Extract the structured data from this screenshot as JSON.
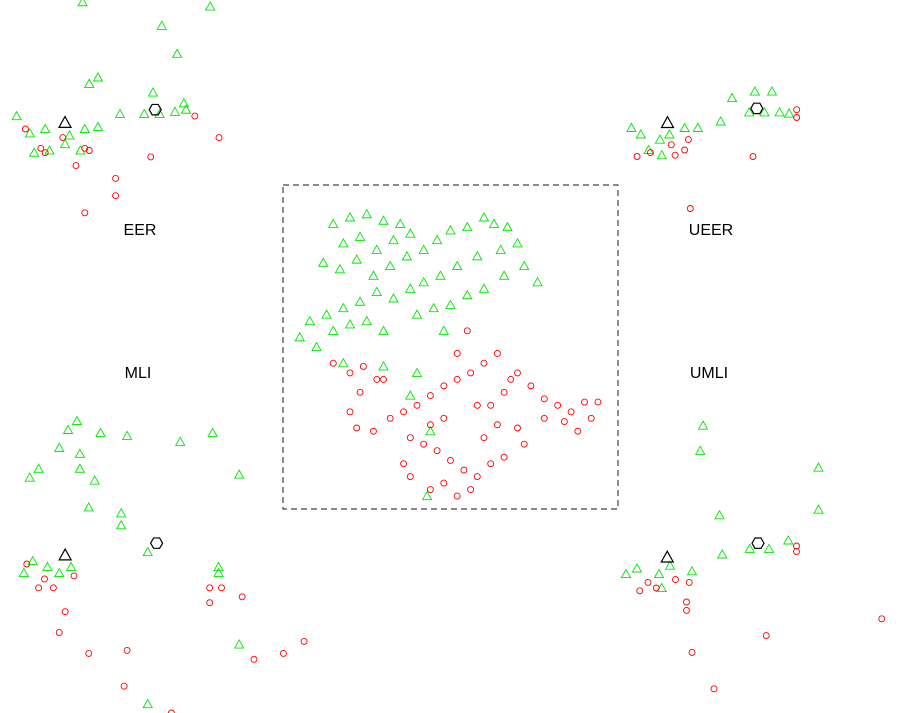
{
  "chart_data": [
    {
      "type": "scatter",
      "frame": "dashed",
      "xlim": [
        0,
        100
      ],
      "ylim": [
        0,
        100
      ],
      "series": [
        {
          "color": "#00e600",
          "marker": "triangle",
          "x": [
            15,
            20,
            25,
            30,
            35,
            18,
            23,
            28,
            33,
            38,
            12,
            17,
            22,
            27,
            32,
            37,
            42,
            46,
            50,
            55,
            60,
            63,
            67,
            70,
            65,
            58,
            52,
            47,
            42,
            38,
            33,
            28,
            23,
            18,
            13,
            8,
            5,
            10,
            15,
            20,
            25,
            30,
            40,
            45,
            50,
            55,
            60,
            66,
            72,
            76,
            48,
            18,
            40,
            30,
            44,
            43,
            38
          ],
          "y": [
            88,
            90,
            91,
            89,
            88,
            82,
            84,
            80,
            83,
            85,
            76,
            74,
            77,
            72,
            75,
            78,
            80,
            83,
            86,
            87,
            90,
            88,
            87,
            82,
            80,
            78,
            75,
            72,
            70,
            68,
            65,
            67,
            64,
            62,
            60,
            58,
            53,
            50,
            55,
            57,
            58,
            55,
            60,
            62,
            63,
            66,
            68,
            72,
            75,
            70,
            55,
            45,
            42,
            44,
            24,
            4,
            35
          ]
        },
        {
          "color": "#ff0000",
          "marker": "circle",
          "x": [
            15,
            20,
            24,
            28,
            23,
            20,
            22,
            27,
            32,
            36,
            40,
            44,
            48,
            52,
            56,
            38,
            42,
            46,
            50,
            54,
            58,
            48,
            44,
            52,
            56,
            38,
            36,
            60,
            64,
            62,
            66,
            68,
            70,
            74,
            78,
            82,
            86,
            90,
            94,
            92,
            88,
            84,
            78,
            72,
            66,
            70,
            60,
            64,
            55,
            52,
            62,
            30,
            58,
            48,
            44
          ],
          "y": [
            45,
            42,
            44,
            40,
            36,
            30,
            25,
            24,
            28,
            30,
            32,
            35,
            38,
            40,
            42,
            22,
            20,
            18,
            15,
            12,
            10,
            8,
            6,
            4,
            6,
            10,
            14,
            22,
            26,
            32,
            36,
            40,
            42,
            38,
            34,
            32,
            30,
            33,
            33,
            28,
            24,
            27,
            28,
            20,
            16,
            25,
            45,
            48,
            55,
            48,
            14,
            40,
            32,
            28,
            26
          ]
        }
      ]
    },
    {
      "type": "scatter",
      "title": "EER",
      "xlim": [
        0,
        100
      ],
      "ylim": [
        0,
        100
      ],
      "series": [
        {
          "color": "#00e600",
          "marker": "triangle",
          "x": [
            33,
            69,
            91,
            76,
            36,
            40,
            65,
            3,
            9,
            16,
            27,
            34,
            40,
            50,
            61,
            68,
            75,
            79,
            80,
            11,
            18,
            25,
            32
          ],
          "y": [
            99,
            88,
            97,
            75,
            61,
            64,
            57,
            46,
            38,
            40,
            37,
            40,
            41,
            47,
            47,
            47,
            48,
            52,
            49,
            29,
            30,
            33,
            30
          ]
        },
        {
          "color": "#ff0000",
          "marker": "circle",
          "x": [
            7,
            14,
            16,
            24,
            30,
            34,
            36,
            48,
            48,
            34,
            64,
            84,
            95
          ],
          "y": [
            40,
            31,
            29,
            36,
            23,
            31,
            30,
            17,
            9,
            1,
            27,
            46,
            36
          ]
        },
        {
          "color": "#000000",
          "marker": "triangle",
          "x": [
            25
          ],
          "y": [
            43
          ]
        },
        {
          "color": "#000000",
          "marker": "hexagon",
          "x": [
            66
          ],
          "y": [
            49
          ]
        }
      ]
    },
    {
      "type": "scatter",
      "title": "UEER",
      "xlim": [
        0,
        100
      ],
      "ylim": [
        0,
        100
      ],
      "series": [
        {
          "color": "#00e600",
          "marker": "triangle",
          "x": [
            6,
            11,
            21,
            26,
            34,
            41,
            53,
            59,
            71,
            80,
            76,
            84,
            89,
            15,
            22,
            68
          ],
          "y": [
            67,
            62,
            58,
            62,
            67,
            67,
            72,
            90,
            95,
            95,
            79,
            79,
            78,
            50,
            46,
            79
          ]
        },
        {
          "color": "#ff0000",
          "marker": "circle",
          "x": [
            9,
            16,
            29,
            34,
            36,
            37,
            70,
            93,
            93,
            27
          ],
          "y": [
            45,
            48,
            46,
            50,
            58,
            5,
            45,
            81,
            75,
            54
          ]
        },
        {
          "color": "#000000",
          "marker": "triangle",
          "x": [
            25
          ],
          "y": [
            71
          ]
        },
        {
          "color": "#000000",
          "marker": "hexagon",
          "x": [
            72
          ],
          "y": [
            82
          ]
        }
      ]
    },
    {
      "type": "scatter",
      "title": "MLI",
      "xlim": [
        0,
        100
      ],
      "ylim": [
        0,
        100
      ],
      "series": [
        {
          "color": "#00e600",
          "marker": "triangle",
          "x": [
            21,
            18,
            29,
            38,
            56,
            67,
            15,
            22,
            22,
            8,
            5,
            27,
            76,
            25,
            36,
            36,
            45,
            6,
            3,
            11,
            15,
            19,
            69,
            69,
            76,
            45
          ],
          "y": [
            98,
            95,
            94,
            93,
            91,
            94,
            89,
            87,
            82,
            82,
            79,
            78,
            80,
            69,
            67,
            63,
            54,
            51,
            47,
            49,
            47,
            49,
            49,
            47,
            23,
            3
          ]
        },
        {
          "color": "#ff0000",
          "marker": "circle",
          "x": [
            4,
            10,
            8,
            13,
            20,
            17,
            15,
            25,
            38,
            37,
            66,
            70,
            66,
            77,
            81,
            91,
            98,
            53
          ],
          "y": [
            50,
            45,
            42,
            42,
            46,
            34,
            27,
            20,
            21,
            9,
            42,
            42,
            37,
            39,
            18,
            20,
            24,
            0
          ]
        },
        {
          "color": "#000000",
          "marker": "triangle",
          "x": [
            17
          ],
          "y": [
            53
          ]
        },
        {
          "color": "#000000",
          "marker": "hexagon",
          "x": [
            48
          ],
          "y": [
            57
          ]
        }
      ]
    },
    {
      "type": "scatter",
      "title": "UMLI",
      "xlim": [
        0,
        100
      ],
      "ylim": [
        0,
        100
      ],
      "series": [
        {
          "color": "#00e600",
          "marker": "triangle",
          "x": [
            32,
            31,
            74,
            74,
            38,
            39,
            49,
            56,
            63,
            4,
            8,
            16,
            20,
            17,
            28
          ],
          "y": [
            98,
            89,
            83,
            68,
            66,
            52,
            54,
            54,
            57,
            45,
            47,
            45,
            48,
            40,
            46
          ]
        },
        {
          "color": "#ff0000",
          "marker": "circle",
          "x": [
            9,
            12,
            15,
            22,
            27,
            26,
            26,
            28,
            36,
            55,
            97,
            66,
            66
          ],
          "y": [
            39,
            42,
            40,
            43,
            42,
            35,
            32,
            17,
            4,
            23,
            29,
            55,
            53
          ]
        },
        {
          "color": "#000000",
          "marker": "triangle",
          "x": [
            19
          ],
          "y": [
            51
          ]
        },
        {
          "color": "#000000",
          "marker": "hexagon",
          "x": [
            52
          ],
          "y": [
            56
          ]
        }
      ]
    }
  ]
}
